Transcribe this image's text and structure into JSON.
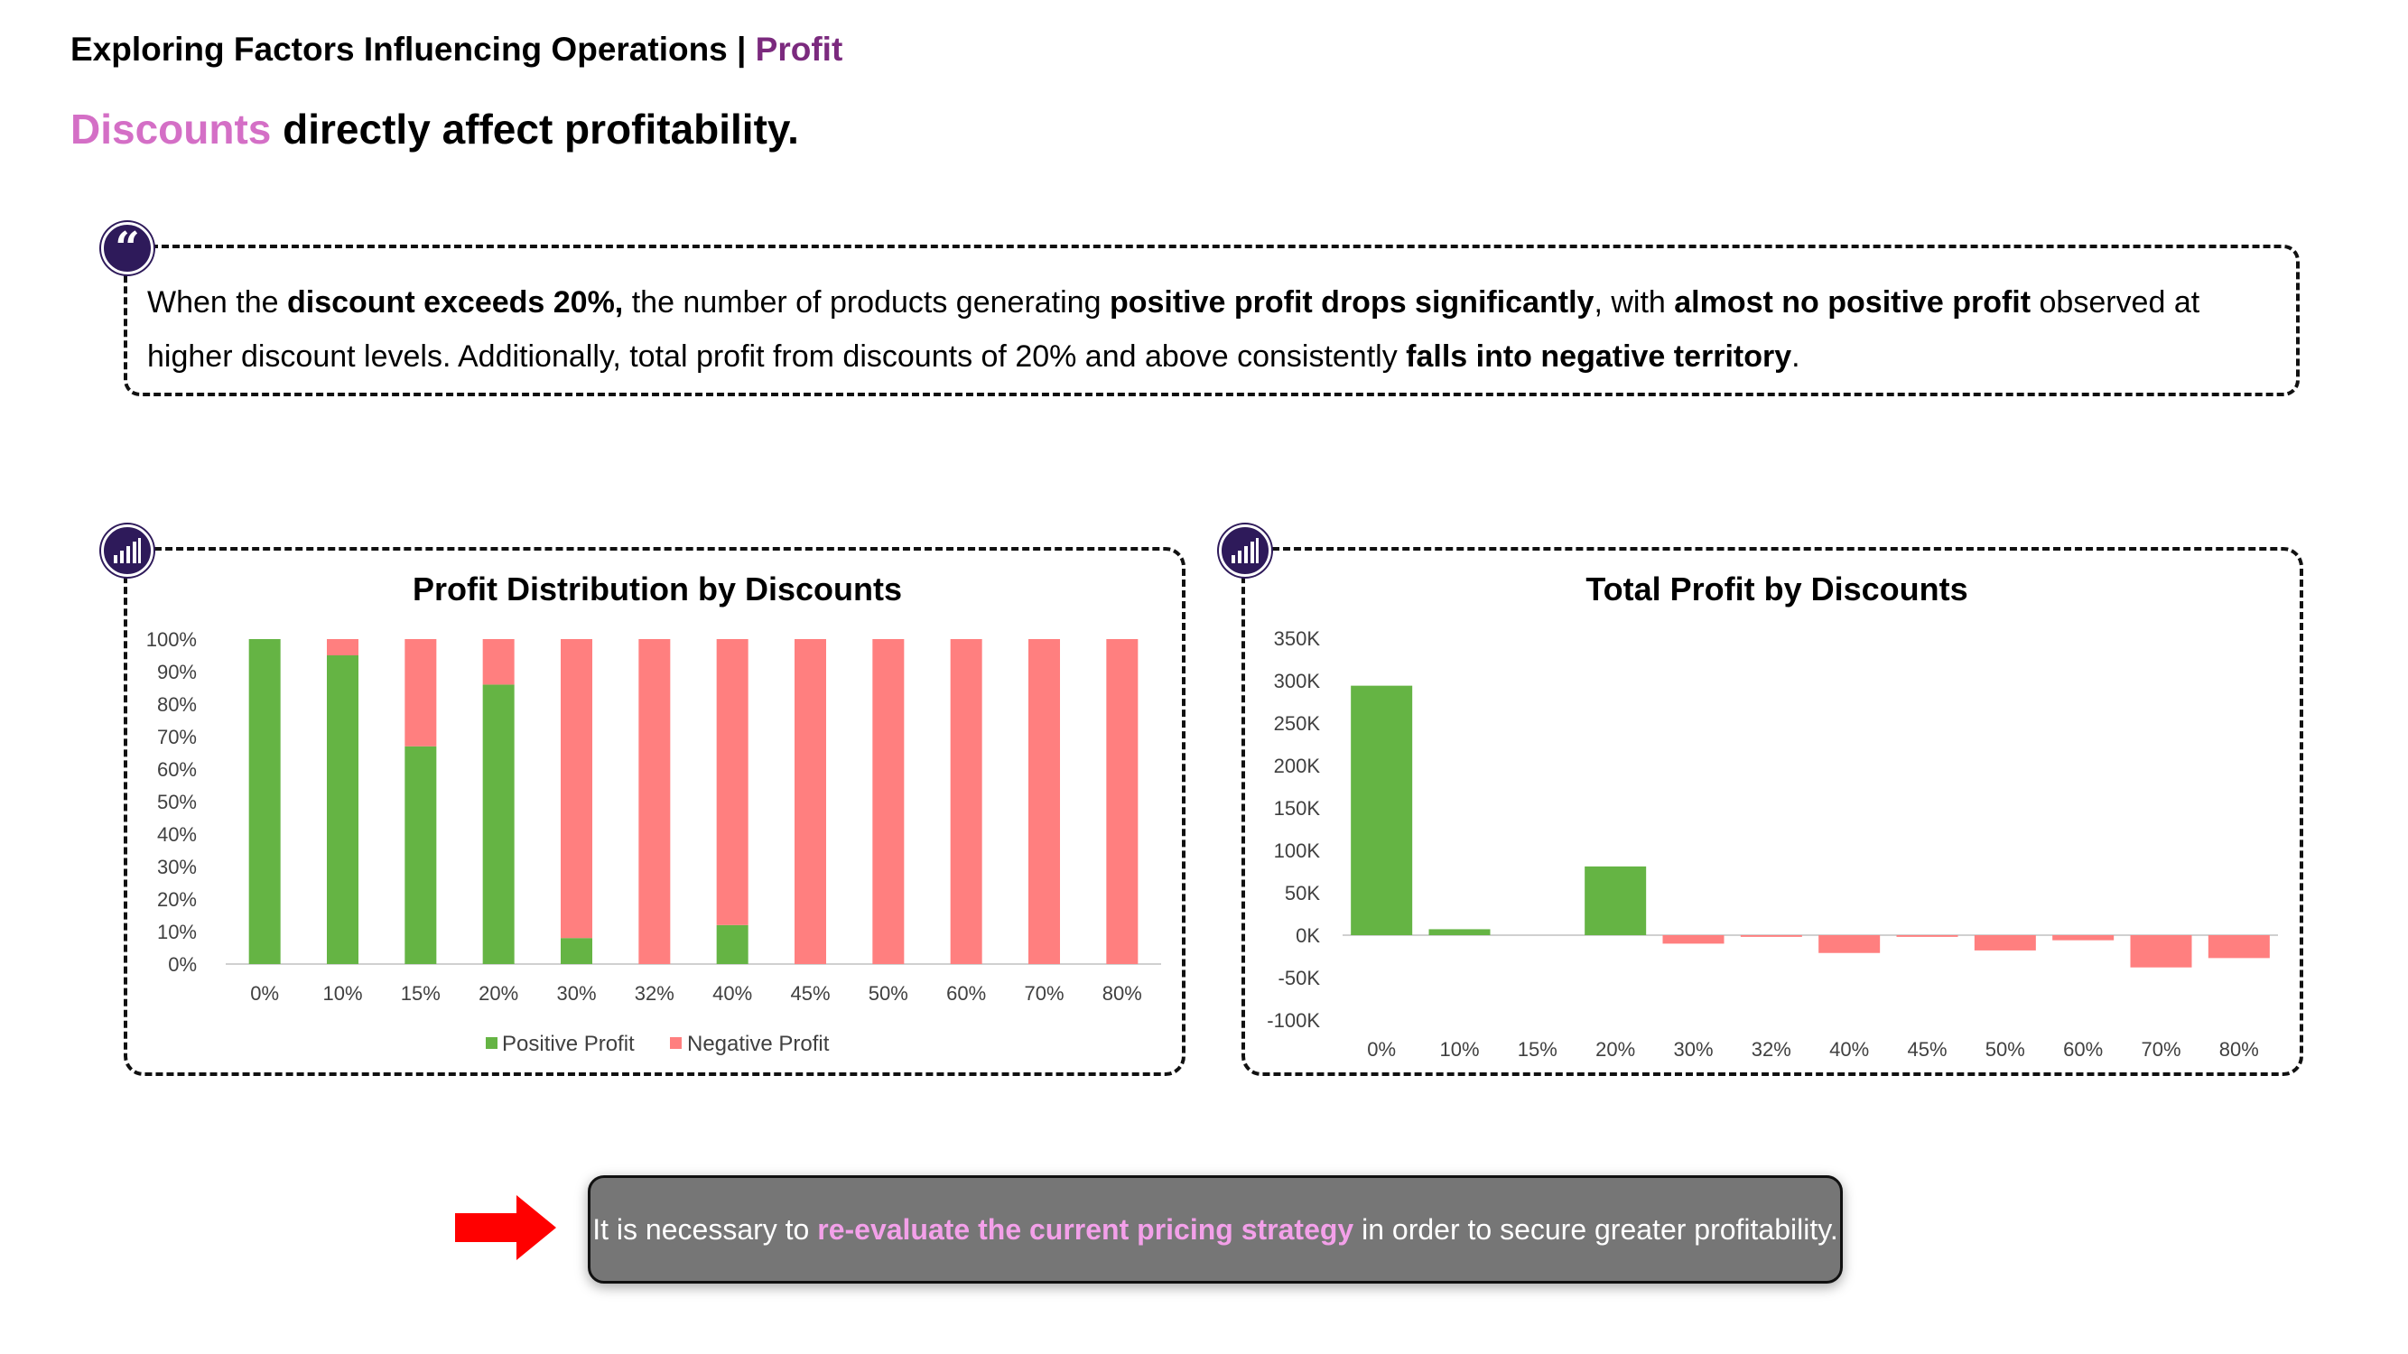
{
  "header": {
    "title_main": "Exploring Factors Influencing Operations | ",
    "title_accent": "Profit"
  },
  "headline": {
    "accent": "Discounts",
    "rest": " directly affect profitability."
  },
  "insight": {
    "segments": [
      {
        "text": "When the ",
        "bold": false
      },
      {
        "text": "discount exceeds 20%,",
        "bold": true
      },
      {
        "text": " the number of products generating ",
        "bold": false
      },
      {
        "text": "positive profit drops significantly",
        "bold": true
      },
      {
        "text": ", with ",
        "bold": false
      },
      {
        "text": "almost no positive profit",
        "bold": true
      },
      {
        "text": " observed at higher discount levels. Additionally, total profit from discounts of 20% and above consistently ",
        "bold": false
      },
      {
        "text": "falls into negative territory",
        "bold": true
      },
      {
        "text": ".",
        "bold": false
      }
    ]
  },
  "icons": {
    "quote_badge": "quote-icon",
    "chart_badge": "bar-chart-icon",
    "arrow": "right-arrow-icon"
  },
  "colors": {
    "positive": "#65b444",
    "negative": "#ff7f7f",
    "badge": "#2e1a5a",
    "title_accent": "#7b2a7e",
    "headline_accent": "#d46fc6",
    "conclusion_accent": "#f3a0e9",
    "arrow": "#ff0000"
  },
  "conclusion": {
    "before": "It is necessary to ",
    "accent": "re-evaluate the current pricing strategy",
    "after": " in order to secure greater profitability."
  },
  "chart_data": [
    {
      "type": "bar",
      "stacked": "100%",
      "title": "Profit Distribution by Discounts",
      "categories": [
        "0%",
        "10%",
        "15%",
        "20%",
        "30%",
        "32%",
        "40%",
        "45%",
        "50%",
        "60%",
        "70%",
        "80%"
      ],
      "series": [
        {
          "name": "Positive Profit",
          "values": [
            100,
            95,
            67,
            86,
            8,
            0,
            12,
            0,
            0,
            0,
            0,
            0
          ]
        },
        {
          "name": "Negative Profit",
          "values": [
            0,
            5,
            33,
            14,
            92,
            100,
            88,
            100,
            100,
            100,
            100,
            100
          ]
        }
      ],
      "yticks": [
        "0%",
        "10%",
        "20%",
        "30%",
        "40%",
        "50%",
        "60%",
        "70%",
        "80%",
        "90%",
        "100%"
      ],
      "ylim": [
        0,
        100
      ],
      "legend": "bottom",
      "grid": false
    },
    {
      "type": "bar",
      "title": "Total Profit by Discounts",
      "categories": [
        "0%",
        "10%",
        "15%",
        "20%",
        "30%",
        "32%",
        "40%",
        "45%",
        "50%",
        "60%",
        "70%",
        "80%"
      ],
      "values": [
        294000,
        7000,
        0,
        81000,
        -10000,
        -2000,
        -21000,
        -2000,
        -18000,
        -6000,
        -38000,
        -27000
      ],
      "yticks": [
        "-100K",
        "-50K",
        "0K",
        "50K",
        "100K",
        "150K",
        "200K",
        "250K",
        "300K",
        "350K"
      ],
      "ylim": [
        -100000,
        350000
      ],
      "legend": "none",
      "grid": false
    }
  ]
}
